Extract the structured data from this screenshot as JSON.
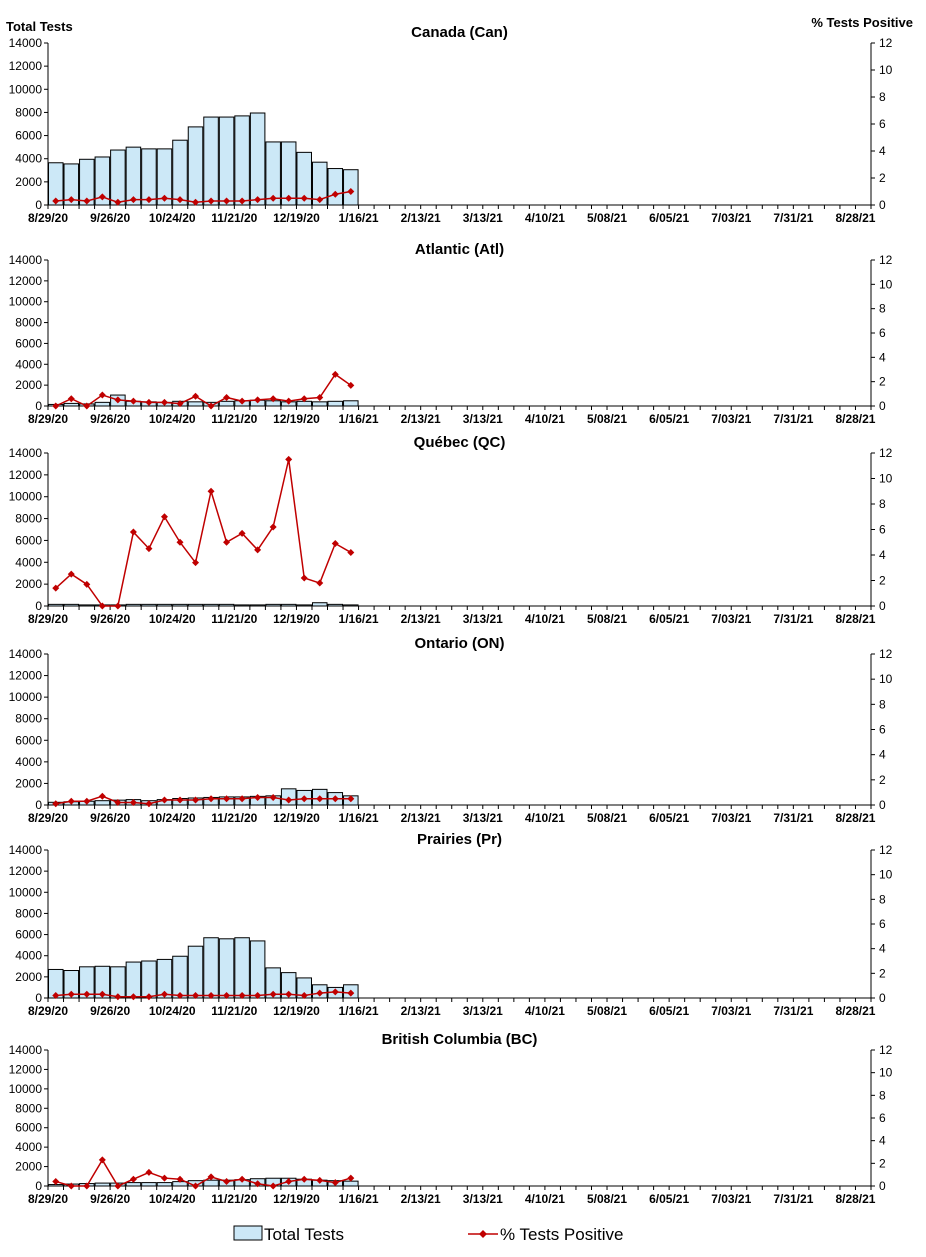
{
  "headers": {
    "left_axis_title": "Total Tests",
    "right_axis_title": "% Tests Positive"
  },
  "legend": {
    "bars_label": "Total Tests",
    "line_label": "% Tests Positive"
  },
  "colors": {
    "bar_fill": "#cce8f7",
    "bar_stroke": "#000000",
    "line": "#c00000"
  },
  "chart_data": [
    {
      "type": "bar",
      "title": "Canada (Can)",
      "x_tick_labels": [
        "8/29/20",
        "9/26/20",
        "10/24/20",
        "11/21/20",
        "12/19/20",
        "1/16/21",
        "2/13/21",
        "3/13/21",
        "4/10/21",
        "5/08/21",
        "6/05/21",
        "7/03/21",
        "7/31/21",
        "8/28/21"
      ],
      "y_left_ticks": [
        0,
        2000,
        4000,
        6000,
        8000,
        10000,
        12000,
        14000
      ],
      "y_right_ticks": [
        0,
        2,
        4,
        6,
        8,
        10,
        12
      ],
      "ylim_left": [
        0,
        14000
      ],
      "ylim_right": [
        0,
        12
      ],
      "weeks_total": 53,
      "series": [
        {
          "name": "Total Tests",
          "values": [
            3650,
            3550,
            3950,
            4150,
            4750,
            5000,
            4850,
            4850,
            5600,
            6750,
            7600,
            7600,
            7700,
            7950,
            5450,
            5450,
            4550,
            3700,
            3150,
            3050
          ]
        },
        {
          "name": "% Tests Positive",
          "values": [
            0.3,
            0.4,
            0.3,
            0.6,
            0.2,
            0.4,
            0.4,
            0.5,
            0.4,
            0.2,
            0.3,
            0.3,
            0.3,
            0.4,
            0.5,
            0.5,
            0.5,
            0.4,
            0.8,
            1.0
          ]
        }
      ]
    },
    {
      "type": "bar",
      "title": "Atlantic (Atl)",
      "x_tick_labels": [
        "8/29/20",
        "9/26/20",
        "10/24/20",
        "11/21/20",
        "12/19/20",
        "1/16/21",
        "2/13/21",
        "3/13/21",
        "4/10/21",
        "5/08/21",
        "6/05/21",
        "7/03/21",
        "7/31/21",
        "8/28/21"
      ],
      "y_left_ticks": [
        0,
        2000,
        4000,
        6000,
        8000,
        10000,
        12000,
        14000
      ],
      "y_right_ticks": [
        0,
        2,
        4,
        6,
        8,
        10,
        12
      ],
      "ylim_left": [
        0,
        14000
      ],
      "ylim_right": [
        0,
        12
      ],
      "weeks_total": 53,
      "series": [
        {
          "name": "Total Tests",
          "values": [
            150,
            250,
            200,
            350,
            1050,
            450,
            400,
            350,
            450,
            400,
            350,
            450,
            500,
            550,
            500,
            400,
            450,
            400,
            450,
            500
          ]
        },
        {
          "name": "% Tests Positive",
          "values": [
            0.0,
            0.6,
            0.0,
            0.9,
            0.5,
            0.4,
            0.3,
            0.3,
            0.2,
            0.8,
            0.0,
            0.7,
            0.4,
            0.5,
            0.6,
            0.4,
            0.6,
            0.7,
            2.6,
            1.7
          ]
        }
      ]
    },
    {
      "type": "bar",
      "title": "Québec (QC)",
      "x_tick_labels": [
        "8/29/20",
        "9/26/20",
        "10/24/20",
        "11/21/20",
        "12/19/20",
        "1/16/21",
        "2/13/21",
        "3/13/21",
        "4/10/21",
        "5/08/21",
        "6/05/21",
        "7/03/21",
        "7/31/21",
        "8/28/21"
      ],
      "y_left_ticks": [
        0,
        2000,
        4000,
        6000,
        8000,
        10000,
        12000,
        14000
      ],
      "y_right_ticks": [
        0,
        2,
        4,
        6,
        8,
        10,
        12
      ],
      "ylim_left": [
        0,
        14000
      ],
      "ylim_right": [
        0,
        12
      ],
      "weeks_total": 53,
      "series": [
        {
          "name": "Total Tests",
          "values": [
            150,
            150,
            100,
            100,
            100,
            150,
            150,
            150,
            150,
            150,
            150,
            150,
            100,
            100,
            150,
            150,
            100,
            300,
            150,
            100
          ]
        },
        {
          "name": "% Tests Positive",
          "values": [
            1.4,
            2.5,
            1.7,
            0.0,
            0.0,
            5.8,
            4.5,
            7.0,
            5.0,
            3.4,
            9.0,
            5.0,
            5.7,
            4.4,
            6.2,
            11.5,
            2.2,
            1.8,
            4.9,
            4.2
          ]
        }
      ]
    },
    {
      "type": "bar",
      "title": "Ontario (ON)",
      "x_tick_labels": [
        "8/29/20",
        "9/26/20",
        "10/24/20",
        "11/21/20",
        "12/19/20",
        "1/16/21",
        "2/13/21",
        "3/13/21",
        "4/10/21",
        "5/08/21",
        "6/05/21",
        "7/03/21",
        "7/31/21",
        "8/28/21"
      ],
      "y_left_ticks": [
        0,
        2000,
        4000,
        6000,
        8000,
        10000,
        12000,
        14000
      ],
      "y_right_ticks": [
        0,
        2,
        4,
        6,
        8,
        10,
        12
      ],
      "ylim_left": [
        0,
        14000
      ],
      "ylim_right": [
        0,
        12
      ],
      "weeks_total": 53,
      "series": [
        {
          "name": "Total Tests",
          "values": [
            250,
            300,
            350,
            400,
            450,
            500,
            400,
            500,
            600,
            650,
            700,
            750,
            750,
            800,
            850,
            1500,
            1350,
            1450,
            1150,
            850
          ]
        },
        {
          "name": "% Tests Positive",
          "values": [
            0.1,
            0.3,
            0.3,
            0.7,
            0.2,
            0.2,
            0.1,
            0.4,
            0.4,
            0.4,
            0.5,
            0.5,
            0.5,
            0.6,
            0.6,
            0.4,
            0.5,
            0.5,
            0.5,
            0.5
          ]
        }
      ]
    },
    {
      "type": "bar",
      "title": "Prairies (Pr)",
      "x_tick_labels": [
        "8/29/20",
        "9/26/20",
        "10/24/20",
        "11/21/20",
        "12/19/20",
        "1/16/21",
        "2/13/21",
        "3/13/21",
        "4/10/21",
        "5/08/21",
        "6/05/21",
        "7/03/21",
        "7/31/21",
        "8/28/21"
      ],
      "y_left_ticks": [
        0,
        2000,
        4000,
        6000,
        8000,
        10000,
        12000,
        14000
      ],
      "y_right_ticks": [
        0,
        2,
        4,
        6,
        8,
        10,
        12
      ],
      "ylim_left": [
        0,
        14000
      ],
      "ylim_right": [
        0,
        12
      ],
      "weeks_total": 53,
      "series": [
        {
          "name": "Total Tests",
          "values": [
            2700,
            2600,
            2950,
            3000,
            2950,
            3400,
            3500,
            3650,
            3950,
            4900,
            5700,
            5600,
            5700,
            5400,
            2850,
            2400,
            1900,
            1250,
            1000,
            1250
          ]
        },
        {
          "name": "% Tests Positive",
          "values": [
            0.2,
            0.3,
            0.3,
            0.3,
            0.1,
            0.1,
            0.1,
            0.3,
            0.2,
            0.2,
            0.2,
            0.2,
            0.2,
            0.2,
            0.3,
            0.3,
            0.2,
            0.4,
            0.5,
            0.4
          ]
        }
      ]
    },
    {
      "type": "bar",
      "title": "British Columbia (BC)",
      "x_tick_labels": [
        "8/29/20",
        "9/26/20",
        "10/24/20",
        "11/21/20",
        "12/19/20",
        "1/16/21",
        "2/13/21",
        "3/13/21",
        "4/10/21",
        "5/08/21",
        "6/05/21",
        "7/03/21",
        "7/31/21",
        "8/28/21"
      ],
      "y_left_ticks": [
        0,
        2000,
        4000,
        6000,
        8000,
        10000,
        12000,
        14000
      ],
      "y_right_ticks": [
        0,
        2,
        4,
        6,
        8,
        10,
        12
      ],
      "ylim_left": [
        0,
        14000
      ],
      "ylim_right": [
        0,
        12
      ],
      "weeks_total": 53,
      "series": [
        {
          "name": "Total Tests",
          "values": [
            150,
            200,
            250,
            300,
            300,
            350,
            350,
            350,
            450,
            550,
            600,
            600,
            650,
            750,
            800,
            800,
            700,
            600,
            550,
            500
          ]
        },
        {
          "name": "% Tests Positive",
          "values": [
            0.4,
            0.0,
            0.0,
            2.3,
            0.0,
            0.6,
            1.2,
            0.7,
            0.6,
            0.0,
            0.8,
            0.4,
            0.6,
            0.2,
            0.0,
            0.4,
            0.6,
            0.5,
            0.3,
            0.7
          ]
        }
      ]
    }
  ]
}
